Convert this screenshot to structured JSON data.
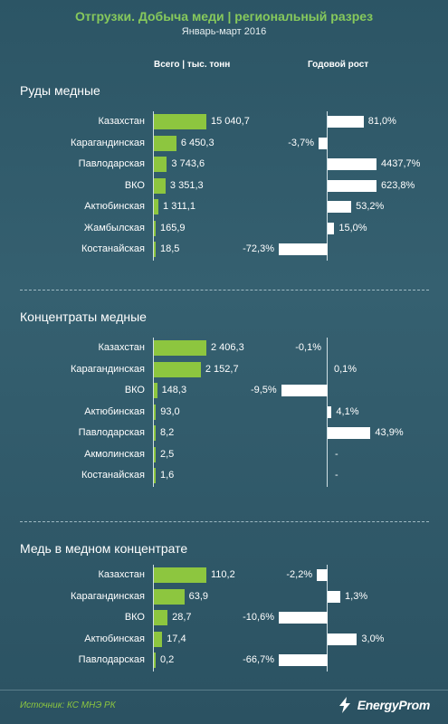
{
  "title": "Отгрузки. Добыча меди | региональный разрез",
  "subtitle": "Январь-март 2016",
  "columns": {
    "total": "Всего | тыс. тонн",
    "growth": "Годовой рост"
  },
  "chart_data": [
    {
      "type": "bar",
      "title": "Руды медные",
      "categories": [
        "Казахстан",
        "Карагандинская",
        "Павлодарская",
        "ВКО",
        "Актюбинская",
        "Жамбылская",
        "Костанайская"
      ],
      "series": [
        {
          "name": "Всего | тыс. тонн",
          "values": [
            15040.7,
            6450.3,
            3743.6,
            3351.3,
            1311.1,
            165.9,
            18.5
          ]
        },
        {
          "name": "Годовой рост",
          "values": [
            81.0,
            -3.7,
            4437.7,
            623.8,
            53.2,
            15.0,
            -72.3
          ]
        }
      ],
      "value_labels": [
        "15 040,7",
        "6 450,3",
        "3 743,6",
        "3 351,3",
        "1 311,1",
        "165,9",
        "18,5"
      ],
      "growth_labels": [
        "81,0%",
        "-3,7%",
        "4437,7%",
        "623,8%",
        "53,2%",
        "15,0%",
        "-72,3%"
      ]
    },
    {
      "type": "bar",
      "title": "Концентраты медные",
      "categories": [
        "Казахстан",
        "Карагандинская",
        "ВКО",
        "Актюбинская",
        "Павлодарская",
        "Акмолинская",
        "Костанайская"
      ],
      "series": [
        {
          "name": "Всего | тыс. тонн",
          "values": [
            2406.3,
            2152.7,
            148.3,
            93.0,
            8.2,
            2.5,
            1.6
          ]
        },
        {
          "name": "Годовой рост",
          "values": [
            -0.1,
            0.1,
            -9.5,
            4.1,
            43.9,
            null,
            null
          ]
        }
      ],
      "value_labels": [
        "2 406,3",
        "2 152,7",
        "148,3",
        "93,0",
        "8,2",
        "2,5",
        "1,6"
      ],
      "growth_labels": [
        "-0,1%",
        "0,1%",
        "-9,5%",
        "4,1%",
        "43,9%",
        "-",
        "-"
      ]
    },
    {
      "type": "bar",
      "title": "Медь в медном концентрате",
      "categories": [
        "Казахстан",
        "Карагандинская",
        "ВКО",
        "Актюбинская",
        "Павлодарская"
      ],
      "series": [
        {
          "name": "Всего | тыс. тонн",
          "values": [
            110.2,
            63.9,
            28.7,
            17.4,
            0.2
          ]
        },
        {
          "name": "Годовой рост",
          "values": [
            -2.2,
            1.3,
            -10.6,
            3.0,
            -66.7
          ]
        }
      ],
      "value_labels": [
        "110,2",
        "63,9",
        "28,7",
        "17,4",
        "0,2"
      ],
      "growth_labels": [
        "-2,2%",
        "1,3%",
        "-10,6%",
        "3,0%",
        "-66,7%"
      ]
    }
  ],
  "footer": {
    "source": "Источник: КС МНЭ РК",
    "logo": "EnergyProm"
  },
  "colors": {
    "bar": "#8dc63f",
    "growth_bar": "#ffffff",
    "title": "#86c95c",
    "background": "#2f5766"
  }
}
